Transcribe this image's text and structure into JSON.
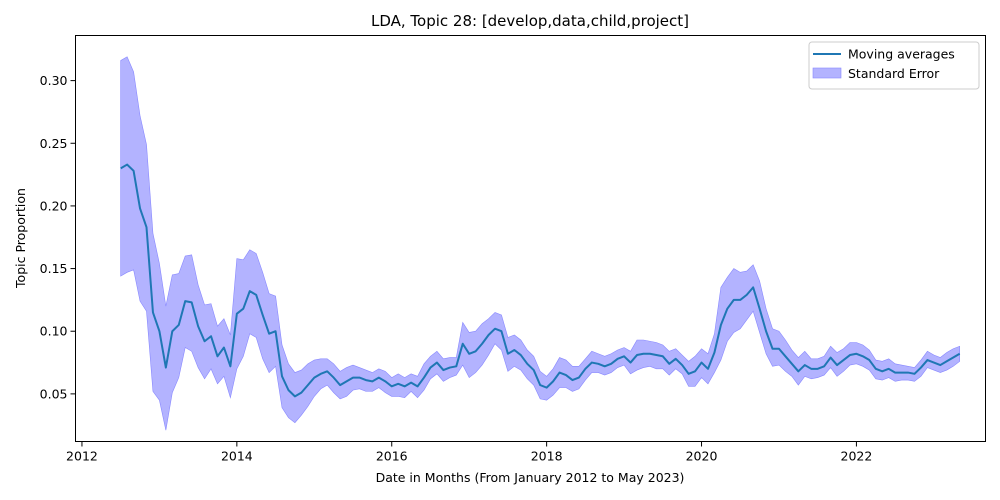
{
  "chart_data": {
    "type": "line",
    "title": "LDA, Topic 28: [develop,data,child,project]",
    "xlabel": "Date in Months (From January 2012 to May 2023)",
    "ylabel": "Topic Proportion",
    "xlim": [
      "2011-12",
      "2023-09"
    ],
    "ylim": [
      0.012,
      0.336
    ],
    "x_ticks": [
      "2012",
      "2014",
      "2016",
      "2018",
      "2020",
      "2022"
    ],
    "y_ticks": [
      "0.05",
      "0.10",
      "0.15",
      "0.20",
      "0.25",
      "0.30"
    ],
    "grid": false,
    "legend_position": "top-right",
    "colors": {
      "line": "#1f77b4",
      "band": "#b3b3ff",
      "band_edge": "#8888ff"
    },
    "x": [
      "2012-07",
      "2012-08",
      "2012-09",
      "2012-10",
      "2012-11",
      "2012-12",
      "2013-01",
      "2013-02",
      "2013-03",
      "2013-04",
      "2013-05",
      "2013-06",
      "2013-07",
      "2013-08",
      "2013-09",
      "2013-10",
      "2013-11",
      "2013-12",
      "2014-01",
      "2014-02",
      "2014-03",
      "2014-04",
      "2014-05",
      "2014-06",
      "2014-07",
      "2014-08",
      "2014-09",
      "2014-10",
      "2014-11",
      "2014-12",
      "2015-01",
      "2015-02",
      "2015-03",
      "2015-04",
      "2015-05",
      "2015-06",
      "2015-07",
      "2015-08",
      "2015-09",
      "2015-10",
      "2015-11",
      "2015-12",
      "2016-01",
      "2016-02",
      "2016-03",
      "2016-04",
      "2016-05",
      "2016-06",
      "2016-07",
      "2016-08",
      "2016-09",
      "2016-10",
      "2016-11",
      "2016-12",
      "2017-01",
      "2017-02",
      "2017-03",
      "2017-04",
      "2017-05",
      "2017-06",
      "2017-07",
      "2017-08",
      "2017-09",
      "2017-10",
      "2017-11",
      "2017-12",
      "2018-01",
      "2018-02",
      "2018-03",
      "2018-04",
      "2018-05",
      "2018-06",
      "2018-07",
      "2018-08",
      "2018-09",
      "2018-10",
      "2018-11",
      "2018-12",
      "2019-01",
      "2019-02",
      "2019-03",
      "2019-04",
      "2019-05",
      "2019-06",
      "2019-07",
      "2019-08",
      "2019-09",
      "2019-10",
      "2019-11",
      "2019-12",
      "2020-01",
      "2020-02",
      "2020-03",
      "2020-04",
      "2020-05",
      "2020-06",
      "2020-07",
      "2020-08",
      "2020-09",
      "2020-10",
      "2020-11",
      "2020-12",
      "2021-01",
      "2021-02",
      "2021-03",
      "2021-04",
      "2021-05",
      "2021-06",
      "2021-07",
      "2021-08",
      "2021-09",
      "2021-10",
      "2021-11",
      "2021-12",
      "2022-01",
      "2022-02",
      "2022-03",
      "2022-04",
      "2022-05",
      "2022-06",
      "2022-07",
      "2022-08",
      "2022-09",
      "2022-10",
      "2022-11",
      "2022-12",
      "2023-01",
      "2023-02",
      "2023-03",
      "2023-04",
      "2023-05"
    ],
    "series": [
      {
        "name": "Moving averages",
        "values": [
          0.23,
          0.233,
          0.228,
          0.198,
          0.183,
          0.115,
          0.1,
          0.071,
          0.1,
          0.105,
          0.124,
          0.123,
          0.104,
          0.092,
          0.096,
          0.08,
          0.087,
          0.072,
          0.114,
          0.118,
          0.132,
          0.129,
          0.113,
          0.098,
          0.1,
          0.064,
          0.053,
          0.048,
          0.051,
          0.057,
          0.063,
          0.066,
          0.068,
          0.063,
          0.057,
          0.06,
          0.063,
          0.063,
          0.061,
          0.06,
          0.063,
          0.06,
          0.056,
          0.058,
          0.056,
          0.059,
          0.056,
          0.063,
          0.071,
          0.075,
          0.069,
          0.071,
          0.072,
          0.09,
          0.082,
          0.084,
          0.09,
          0.097,
          0.102,
          0.1,
          0.082,
          0.085,
          0.081,
          0.074,
          0.069,
          0.057,
          0.055,
          0.06,
          0.067,
          0.065,
          0.061,
          0.063,
          0.07,
          0.075,
          0.074,
          0.072,
          0.074,
          0.078,
          0.08,
          0.075,
          0.081,
          0.082,
          0.082,
          0.081,
          0.08,
          0.074,
          0.078,
          0.073,
          0.066,
          0.068,
          0.075,
          0.07,
          0.083,
          0.105,
          0.118,
          0.125,
          0.125,
          0.129,
          0.135,
          0.118,
          0.1,
          0.086,
          0.086,
          0.08,
          0.074,
          0.068,
          0.073,
          0.07,
          0.07,
          0.072,
          0.079,
          0.073,
          0.077,
          0.081,
          0.082,
          0.08,
          0.077,
          0.07,
          0.068,
          0.07,
          0.067,
          0.067,
          0.067,
          0.066,
          0.071,
          0.077,
          0.075,
          0.073,
          0.076,
          0.079,
          0.082
        ]
      },
      {
        "name": "Standard Error",
        "lower": [
          0.144,
          0.147,
          0.149,
          0.124,
          0.116,
          0.052,
          0.045,
          0.021,
          0.051,
          0.063,
          0.087,
          0.084,
          0.071,
          0.062,
          0.07,
          0.058,
          0.064,
          0.047,
          0.07,
          0.08,
          0.098,
          0.095,
          0.078,
          0.067,
          0.072,
          0.039,
          0.031,
          0.027,
          0.033,
          0.04,
          0.048,
          0.054,
          0.057,
          0.051,
          0.046,
          0.048,
          0.053,
          0.054,
          0.052,
          0.052,
          0.055,
          0.051,
          0.048,
          0.048,
          0.047,
          0.052,
          0.047,
          0.053,
          0.062,
          0.066,
          0.06,
          0.063,
          0.065,
          0.073,
          0.063,
          0.067,
          0.073,
          0.081,
          0.09,
          0.085,
          0.068,
          0.072,
          0.069,
          0.062,
          0.057,
          0.046,
          0.045,
          0.049,
          0.055,
          0.055,
          0.052,
          0.054,
          0.061,
          0.067,
          0.067,
          0.065,
          0.067,
          0.071,
          0.073,
          0.066,
          0.069,
          0.071,
          0.072,
          0.07,
          0.07,
          0.065,
          0.07,
          0.066,
          0.056,
          0.056,
          0.063,
          0.058,
          0.067,
          0.077,
          0.092,
          0.099,
          0.102,
          0.109,
          0.116,
          0.099,
          0.082,
          0.072,
          0.073,
          0.068,
          0.064,
          0.057,
          0.064,
          0.062,
          0.063,
          0.065,
          0.071,
          0.064,
          0.068,
          0.073,
          0.074,
          0.072,
          0.069,
          0.062,
          0.061,
          0.063,
          0.06,
          0.061,
          0.061,
          0.06,
          0.064,
          0.071,
          0.069,
          0.067,
          0.069,
          0.072,
          0.076
        ],
        "upper": [
          0.316,
          0.319,
          0.307,
          0.272,
          0.249,
          0.178,
          0.154,
          0.12,
          0.145,
          0.146,
          0.16,
          0.161,
          0.137,
          0.121,
          0.122,
          0.104,
          0.11,
          0.097,
          0.158,
          0.157,
          0.165,
          0.162,
          0.147,
          0.13,
          0.128,
          0.089,
          0.074,
          0.067,
          0.069,
          0.074,
          0.077,
          0.078,
          0.078,
          0.074,
          0.068,
          0.071,
          0.073,
          0.071,
          0.069,
          0.067,
          0.07,
          0.068,
          0.063,
          0.066,
          0.063,
          0.066,
          0.064,
          0.074,
          0.08,
          0.084,
          0.078,
          0.079,
          0.079,
          0.107,
          0.099,
          0.1,
          0.106,
          0.11,
          0.115,
          0.113,
          0.095,
          0.097,
          0.093,
          0.085,
          0.08,
          0.068,
          0.064,
          0.07,
          0.079,
          0.077,
          0.072,
          0.072,
          0.078,
          0.084,
          0.082,
          0.08,
          0.082,
          0.085,
          0.087,
          0.084,
          0.093,
          0.093,
          0.092,
          0.091,
          0.089,
          0.084,
          0.086,
          0.081,
          0.076,
          0.08,
          0.086,
          0.082,
          0.098,
          0.135,
          0.143,
          0.15,
          0.147,
          0.148,
          0.153,
          0.14,
          0.118,
          0.102,
          0.1,
          0.093,
          0.085,
          0.079,
          0.084,
          0.078,
          0.078,
          0.08,
          0.088,
          0.083,
          0.086,
          0.091,
          0.091,
          0.089,
          0.085,
          0.077,
          0.076,
          0.078,
          0.074,
          0.073,
          0.072,
          0.071,
          0.077,
          0.084,
          0.081,
          0.079,
          0.083,
          0.086,
          0.088
        ]
      }
    ]
  }
}
